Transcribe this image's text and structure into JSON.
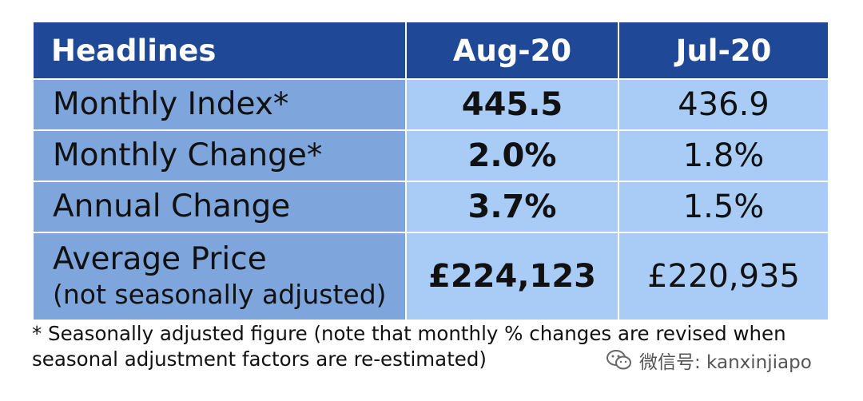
{
  "table": {
    "headers": [
      "Headlines",
      "Aug-20",
      "Jul-20"
    ],
    "rows": [
      {
        "label": "Monthly Index*",
        "sublabel": "",
        "aug": "445.5",
        "jul": "436.9"
      },
      {
        "label": "Monthly Change*",
        "sublabel": "",
        "aug": "2.0%",
        "jul": "1.8%"
      },
      {
        "label": "Annual Change",
        "sublabel": "",
        "aug": "3.7%",
        "jul": "1.5%"
      },
      {
        "label": "Average Price",
        "sublabel": "(not seasonally adjusted)",
        "aug": "£224,123",
        "jul": "£220,935"
      }
    ]
  },
  "footnote": "* Seasonally adjusted figure (note that monthly % changes are revised when seasonal adjustment factors are re-estimated)",
  "watermark": {
    "icon": "wechat-icon",
    "text": "微信号: kanxinjiapo"
  },
  "colors": {
    "header_bg": "#1f4896",
    "label_bg": "#7ea6dc",
    "value_bg": "#a9ccf7"
  }
}
